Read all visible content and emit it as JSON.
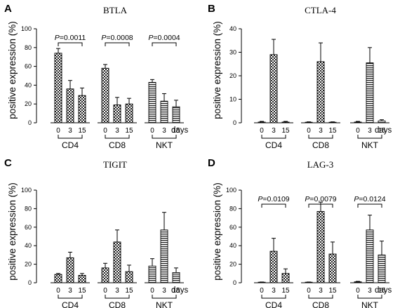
{
  "chart_data": [
    {
      "type": "bar",
      "panel": "A",
      "title": "BTLA",
      "ylabel": "positive expression (%)",
      "ylim": [
        0,
        100
      ],
      "yticks": [
        0,
        20,
        40,
        60,
        80,
        100
      ],
      "x_unit": "days",
      "groups": [
        {
          "name": "CD4",
          "days": [
            "0",
            "3",
            "15"
          ],
          "values": [
            74,
            36,
            29
          ],
          "errors": [
            5,
            9,
            8
          ],
          "pattern": "checker"
        },
        {
          "name": "CD8",
          "days": [
            "0",
            "3",
            "15"
          ],
          "values": [
            58,
            19,
            20
          ],
          "errors": [
            4,
            8,
            6
          ],
          "pattern": "checker"
        },
        {
          "name": "NKT",
          "days": [
            "0",
            "3",
            "15"
          ],
          "values": [
            43,
            23,
            17
          ],
          "errors": [
            3,
            8,
            7
          ],
          "pattern": "stripes"
        }
      ],
      "annotations": [
        {
          "group": "CD4",
          "label": "P=0.0011"
        },
        {
          "group": "CD8",
          "label": "P=0.0008"
        },
        {
          "group": "NKT",
          "label": "P=0.0004"
        }
      ]
    },
    {
      "type": "bar",
      "panel": "B",
      "title": "CTLA-4",
      "ylabel": "positive expression (%)",
      "ylim": [
        0,
        40
      ],
      "yticks": [
        0,
        10,
        20,
        30,
        40
      ],
      "x_unit": "days",
      "groups": [
        {
          "name": "CD4",
          "days": [
            "0",
            "3",
            "15"
          ],
          "values": [
            0.3,
            29,
            0.3
          ],
          "errors": [
            0.3,
            6.5,
            0.3
          ],
          "pattern": "checker"
        },
        {
          "name": "CD8",
          "days": [
            "0",
            "3",
            "15"
          ],
          "values": [
            0.2,
            26,
            0.2
          ],
          "errors": [
            0.2,
            8,
            0.2
          ],
          "pattern": "checker"
        },
        {
          "name": "NKT",
          "days": [
            "0",
            "3",
            "15"
          ],
          "values": [
            0.3,
            25.5,
            0.8
          ],
          "errors": [
            0.3,
            6.5,
            0.5
          ],
          "pattern": "stripes"
        }
      ],
      "annotations": []
    },
    {
      "type": "bar",
      "panel": "C",
      "title": "TIGIT",
      "ylabel": "positive expression (%)",
      "ylim": [
        0,
        100
      ],
      "yticks": [
        0,
        20,
        40,
        60,
        80,
        100
      ],
      "x_unit": "days",
      "groups": [
        {
          "name": "CD4",
          "days": [
            "0",
            "3",
            "15"
          ],
          "values": [
            9,
            27,
            8
          ],
          "errors": [
            1,
            6,
            2
          ],
          "pattern": "checker"
        },
        {
          "name": "CD8",
          "days": [
            "0",
            "3",
            "15"
          ],
          "values": [
            16,
            44,
            12
          ],
          "errors": [
            5,
            13,
            7
          ],
          "pattern": "checker"
        },
        {
          "name": "NKT",
          "days": [
            "0",
            "3",
            "15"
          ],
          "values": [
            18,
            57,
            11
          ],
          "errors": [
            8,
            19,
            5
          ],
          "pattern": "stripes"
        }
      ],
      "annotations": []
    },
    {
      "type": "bar",
      "panel": "D",
      "title": "LAG-3",
      "ylabel": "positive expression (%)",
      "ylim": [
        0,
        100
      ],
      "yticks": [
        0,
        20,
        40,
        60,
        80,
        100
      ],
      "x_unit": "days",
      "groups": [
        {
          "name": "CD4",
          "days": [
            "0",
            "3",
            "15"
          ],
          "values": [
            0.5,
            34,
            10
          ],
          "errors": [
            0.3,
            14,
            5
          ],
          "pattern": "checker"
        },
        {
          "name": "CD8",
          "days": [
            "0",
            "3",
            "15"
          ],
          "values": [
            0.5,
            77,
            31
          ],
          "errors": [
            0.3,
            10,
            13
          ],
          "pattern": "checker"
        },
        {
          "name": "NKT",
          "days": [
            "0",
            "3",
            "15"
          ],
          "values": [
            1,
            57,
            30
          ],
          "errors": [
            0.5,
            16,
            15
          ],
          "pattern": "stripes"
        }
      ],
      "annotations": [
        {
          "group": "CD4",
          "label": "P=0.0109"
        },
        {
          "group": "CD8",
          "label": "P=0.0079"
        },
        {
          "group": "NKT",
          "label": "P=0.0124"
        }
      ]
    }
  ]
}
